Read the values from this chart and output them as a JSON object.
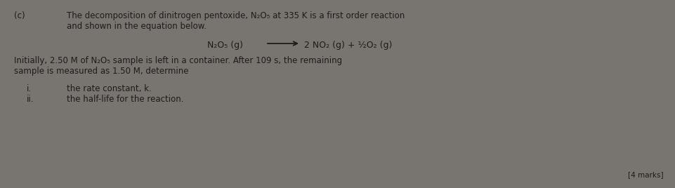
{
  "bg_color": "#787470",
  "text_color": "#1c1c1c",
  "label_c": "(c)",
  "line1": "The decomposition of dinitrogen pentoxide, N₂O₅ at 335 K is a first order reaction",
  "line2": "and shown in the equation below.",
  "equation_left": "N₂O₅ (g)",
  "equation_right": "2 NO₂ (g) + ½O₂ (g)",
  "para1_line1": "Initially, 2.50 M of N₂O₅ sample is left in a container. After 109 s, the remaining",
  "para1_line2": "sample is measured as 1.50 M, determine",
  "item_i_label": "i.",
  "item_ii_label": "ii.",
  "item_i": "the rate constant, k.",
  "item_ii": "the half-life for the reaction.",
  "marks": "[4 marks]",
  "font_size_main": 8.5,
  "font_size_eq": 9.0,
  "font_size_marks": 7.5
}
